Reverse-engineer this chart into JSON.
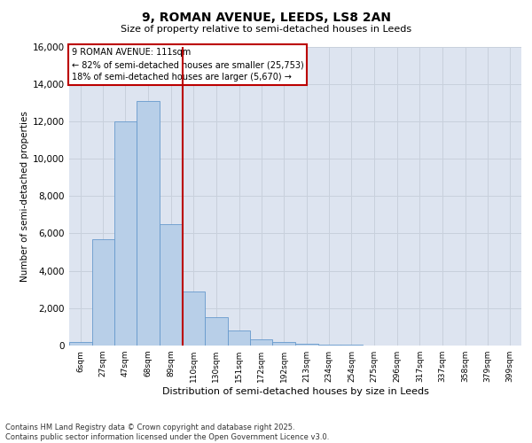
{
  "title_line1": "9, ROMAN AVENUE, LEEDS, LS8 2AN",
  "title_line2": "Size of property relative to semi-detached houses in Leeds",
  "xlabel": "Distribution of semi-detached houses by size in Leeds",
  "ylabel": "Number of semi-detached properties",
  "annotation_line1": "9 ROMAN AVENUE: 111sqm",
  "annotation_line2": "← 82% of semi-detached houses are smaller (25,753)",
  "annotation_line3": "18% of semi-detached houses are larger (5,670) →",
  "bar_edges": [
    6,
    27,
    47,
    68,
    89,
    110,
    130,
    151,
    172,
    192,
    213,
    234,
    254,
    275,
    296,
    317,
    337,
    358,
    379,
    399,
    420
  ],
  "bar_heights": [
    200,
    5700,
    12000,
    13100,
    6500,
    2900,
    1500,
    800,
    350,
    200,
    100,
    60,
    40,
    20,
    10,
    5,
    3,
    2,
    1,
    1
  ],
  "bar_color": "#b8cfe8",
  "bar_edge_color": "#6699cc",
  "vline_color": "#bb0000",
  "vline_x": 110,
  "ylim": [
    0,
    16000
  ],
  "yticks": [
    0,
    2000,
    4000,
    6000,
    8000,
    10000,
    12000,
    14000,
    16000
  ],
  "grid_color": "#c8d0dc",
  "background_color": "#dde4f0",
  "footnote_line1": "Contains HM Land Registry data © Crown copyright and database right 2025.",
  "footnote_line2": "Contains public sector information licensed under the Open Government Licence v3.0."
}
